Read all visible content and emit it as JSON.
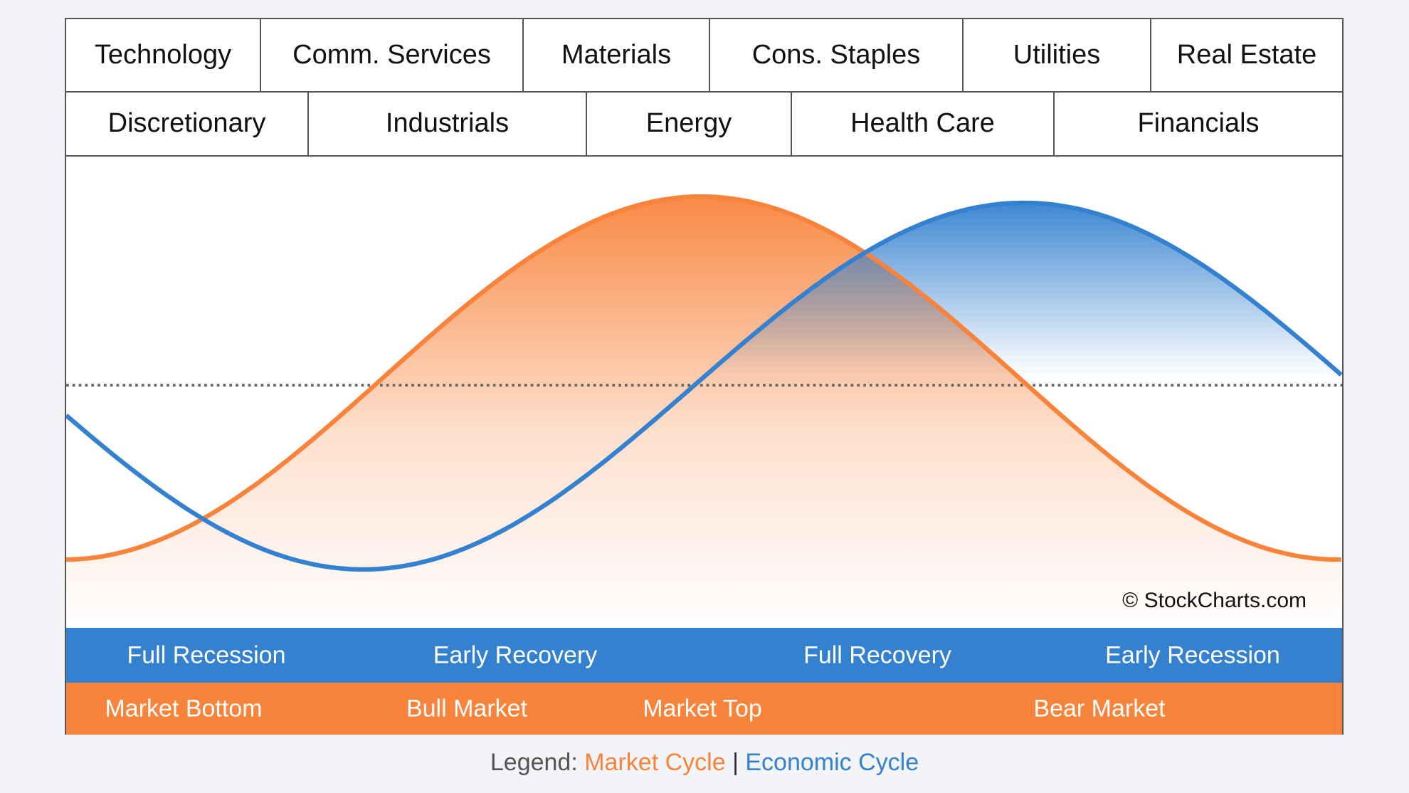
{
  "sectors_top": [
    "Technology",
    "Comm. Services",
    "Materials",
    "Cons. Staples",
    "Utilities",
    "Real Estate"
  ],
  "sectors_bottom": [
    "Discretionary",
    "Industrials",
    "Energy",
    "Health Care",
    "Financials"
  ],
  "copyright": "© StockCharts.com",
  "economic_phases": [
    "Full Recession",
    "Early Recovery",
    "Full Recovery",
    "Early Recession"
  ],
  "market_phases": [
    "Market Bottom",
    "Bull Market",
    "Market Top",
    "Bear Market"
  ],
  "legend": {
    "prefix": "Legend:",
    "market": "Market Cycle",
    "separator": "|",
    "economic": "Economic Cycle"
  },
  "colors": {
    "market": "#f8833b",
    "economic": "#3481d0"
  }
}
